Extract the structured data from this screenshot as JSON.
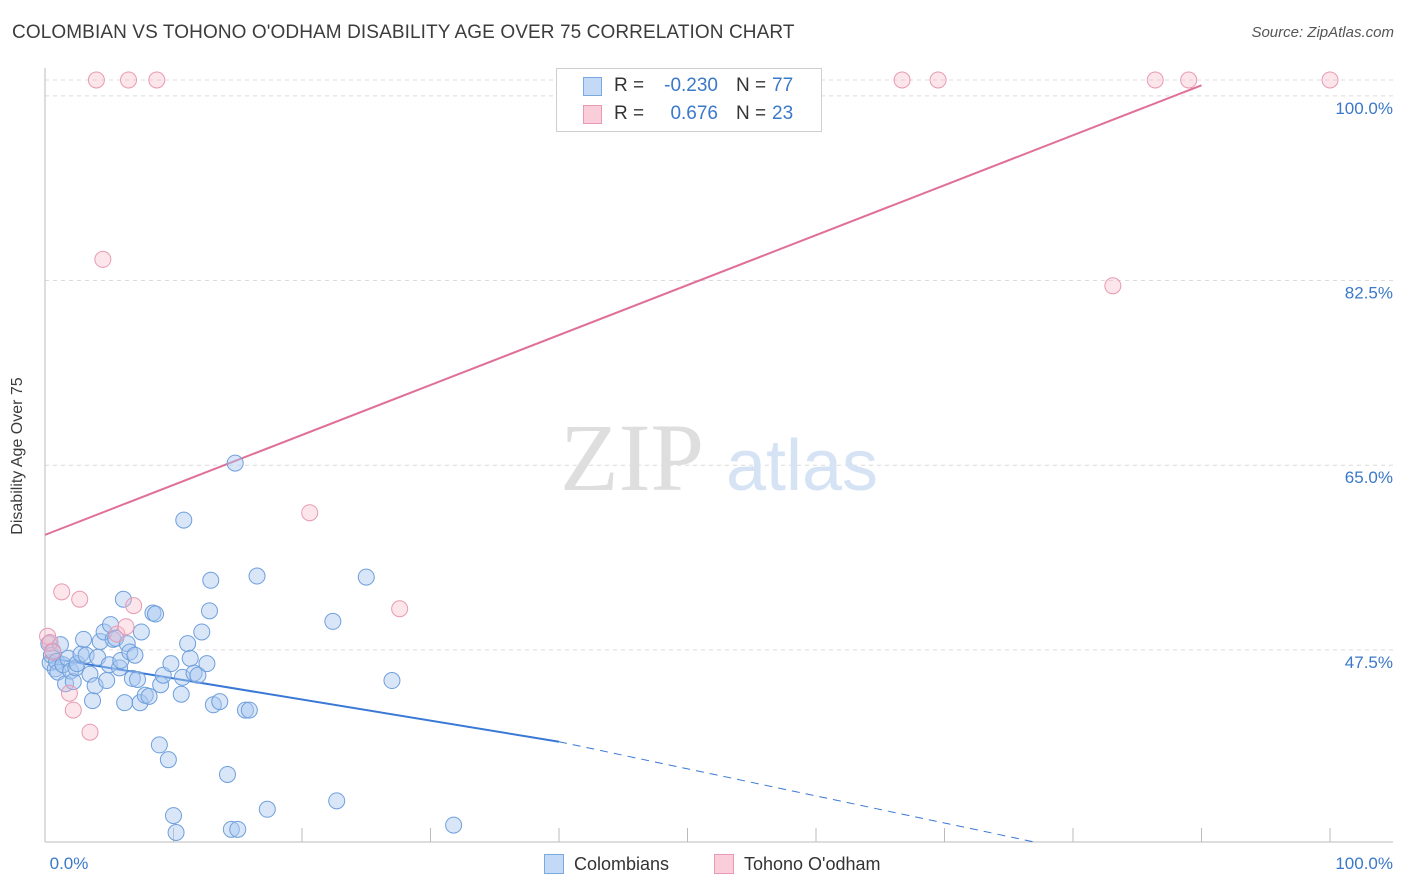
{
  "header": {
    "title": "COLOMBIAN VS TOHONO O'ODHAM DISABILITY AGE OVER 75 CORRELATION CHART",
    "source": "Source: ZipAtlas.com"
  },
  "watermark": {
    "zip": "ZIP",
    "atlas": "atlas"
  },
  "legend": {
    "rows": [
      {
        "r_label": "R =",
        "r_value": "-0.230",
        "n_label": "N =",
        "n_value": "77",
        "color": "#a8c8f0"
      },
      {
        "r_label": "R =",
        "r_value": "0.676",
        "n_label": "N =",
        "n_value": "23",
        "color": "#f6b8c8"
      }
    ]
  },
  "bottom_legend": {
    "series_1": "Colombians",
    "series_2": "Tohono O'odham"
  },
  "chart_data": {
    "type": "scatter",
    "title": "COLOMBIAN VS TOHONO O'ODHAM DISABILITY AGE OVER 75 CORRELATION CHART",
    "xlabel": "",
    "ylabel": "Disability Age Over 75",
    "xlim": [
      0,
      100
    ],
    "ylim": [
      29.3,
      101.5
    ],
    "x_tick_labels": [
      "0.0%",
      "100.0%"
    ],
    "y_ticks": [
      {
        "value": 47.5,
        "label": "47.5%"
      },
      {
        "value": 65.0,
        "label": "65.0%"
      },
      {
        "value": 82.5,
        "label": "82.5%"
      },
      {
        "value": 100.0,
        "label": "100.0%"
      }
    ],
    "grid": true,
    "legend_position": "top-center",
    "colors": {
      "colombians": "#3a78d6",
      "tohono": "#e0709a",
      "tick_label": "#3a78c9"
    },
    "series": [
      {
        "name": "Colombians",
        "r": -0.23,
        "n": 77,
        "trend": {
          "x0": 0.0,
          "y0": 46.8,
          "x1": 40.0,
          "y1": 38.8,
          "dash_to_x": 77.0,
          "dash_to_y": 29.3
        },
        "points": [
          [
            0.3,
            48.1
          ],
          [
            0.4,
            46.3
          ],
          [
            0.5,
            47.0
          ],
          [
            0.6,
            47.4
          ],
          [
            0.8,
            45.7
          ],
          [
            0.9,
            46.4
          ],
          [
            1.0,
            45.4
          ],
          [
            1.2,
            48.0
          ],
          [
            1.4,
            46.1
          ],
          [
            1.6,
            44.3
          ],
          [
            1.8,
            46.7
          ],
          [
            2.0,
            45.5
          ],
          [
            2.2,
            44.5
          ],
          [
            2.4,
            45.8
          ],
          [
            2.5,
            46.2
          ],
          [
            2.8,
            47.1
          ],
          [
            3.0,
            48.5
          ],
          [
            3.2,
            47.0
          ],
          [
            3.5,
            45.2
          ],
          [
            3.7,
            42.7
          ],
          [
            3.9,
            44.1
          ],
          [
            4.1,
            46.8
          ],
          [
            4.3,
            48.3
          ],
          [
            4.6,
            49.2
          ],
          [
            4.8,
            44.6
          ],
          [
            5.0,
            46.1
          ],
          [
            5.1,
            49.9
          ],
          [
            5.3,
            48.5
          ],
          [
            5.5,
            48.6
          ],
          [
            5.8,
            45.8
          ],
          [
            5.9,
            46.5
          ],
          [
            6.1,
            52.3
          ],
          [
            6.2,
            42.5
          ],
          [
            6.4,
            48.1
          ],
          [
            6.6,
            47.3
          ],
          [
            6.8,
            44.8
          ],
          [
            7.0,
            47.0
          ],
          [
            7.2,
            44.7
          ],
          [
            7.4,
            42.5
          ],
          [
            7.5,
            49.2
          ],
          [
            7.8,
            43.2
          ],
          [
            8.1,
            43.1
          ],
          [
            8.4,
            51.0
          ],
          [
            8.6,
            50.9
          ],
          [
            8.9,
            38.5
          ],
          [
            9.0,
            44.2
          ],
          [
            9.2,
            45.1
          ],
          [
            9.6,
            37.1
          ],
          [
            9.8,
            46.2
          ],
          [
            10.0,
            31.8
          ],
          [
            10.2,
            30.2
          ],
          [
            10.6,
            43.3
          ],
          [
            10.7,
            44.9
          ],
          [
            10.8,
            59.8
          ],
          [
            11.1,
            48.1
          ],
          [
            11.3,
            46.7
          ],
          [
            11.6,
            45.3
          ],
          [
            11.9,
            45.1
          ],
          [
            12.2,
            49.2
          ],
          [
            12.6,
            46.2
          ],
          [
            12.8,
            51.2
          ],
          [
            12.9,
            54.1
          ],
          [
            13.1,
            42.3
          ],
          [
            13.6,
            42.6
          ],
          [
            14.2,
            35.7
          ],
          [
            14.5,
            30.5
          ],
          [
            14.8,
            65.2
          ],
          [
            15.0,
            30.5
          ],
          [
            15.6,
            41.8
          ],
          [
            15.9,
            41.8
          ],
          [
            16.5,
            54.5
          ],
          [
            17.3,
            32.4
          ],
          [
            22.4,
            50.2
          ],
          [
            22.7,
            33.2
          ],
          [
            25.0,
            54.4
          ],
          [
            27.0,
            44.6
          ],
          [
            31.8,
            30.9
          ]
        ]
      },
      {
        "name": "Tohono O'odham",
        "r": 0.676,
        "n": 23,
        "trend": {
          "x0": 0.0,
          "y0": 58.4,
          "x1": 90.0,
          "y1": 101.0
        },
        "points": [
          [
            0.2,
            48.8
          ],
          [
            0.4,
            48.2
          ],
          [
            0.6,
            47.3
          ],
          [
            1.3,
            53.0
          ],
          [
            1.9,
            43.4
          ],
          [
            2.2,
            41.8
          ],
          [
            2.7,
            52.3
          ],
          [
            3.5,
            39.7
          ],
          [
            4.5,
            84.5
          ],
          [
            5.6,
            49.0
          ],
          [
            6.3,
            49.7
          ],
          [
            6.9,
            51.7
          ],
          [
            4.0,
            101.5
          ],
          [
            6.5,
            101.5
          ],
          [
            8.7,
            101.5
          ],
          [
            20.6,
            60.5
          ],
          [
            27.6,
            51.4
          ],
          [
            66.7,
            101.5
          ],
          [
            69.5,
            101.5
          ],
          [
            83.1,
            82.0
          ],
          [
            86.4,
            101.5
          ],
          [
            89.0,
            101.5
          ],
          [
            100.0,
            101.5
          ]
        ]
      }
    ]
  }
}
